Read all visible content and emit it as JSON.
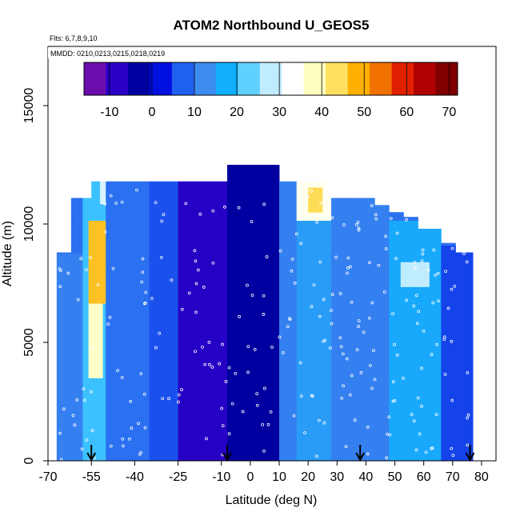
{
  "chart_data": {
    "type": "heatmap",
    "title": "ATOM2 Northbound U_GEOS5",
    "subtitle_flights": "Flts: 6,7,8,9,10",
    "subtitle_dates": "MMDD: 0210,0213,0215,0218,0219",
    "xlabel": "Latitude (deg N)",
    "ylabel": "Altitude (m)",
    "xlim": [
      -70,
      85
    ],
    "ylim": [
      0,
      17500
    ],
    "x_ticks": [
      -70,
      -55,
      -40,
      -25,
      -10,
      0,
      10,
      20,
      30,
      40,
      50,
      60,
      70,
      80
    ],
    "y_ticks": [
      0,
      5000,
      10000,
      15000
    ],
    "colorbar": {
      "range": [
        -16,
        72
      ],
      "ticks": [
        -10,
        0,
        10,
        20,
        30,
        40,
        50,
        60,
        70
      ],
      "colors": [
        "#6a0dad",
        "#2a00c8",
        "#0000a0",
        "#0010e0",
        "#2060f0",
        "#3c8cf0",
        "#10b0ff",
        "#60d0ff",
        "#c0ecff",
        "#ffffff",
        "#ffffc0",
        "#ffe060",
        "#ffb000",
        "#f07000",
        "#e02000",
        "#b00000",
        "#800000"
      ]
    },
    "column_max_altitude": [
      {
        "lat": [
          -67,
          -62
        ],
        "top": 8800
      },
      {
        "lat": [
          -62,
          -55
        ],
        "top": 11100
      },
      {
        "lat": [
          -55,
          -45
        ],
        "top": 11800
      },
      {
        "lat": [
          -45,
          -33
        ],
        "top": 11800
      },
      {
        "lat": [
          -33,
          -20
        ],
        "top": 11800
      },
      {
        "lat": [
          -20,
          -8
        ],
        "top": 11800
      },
      {
        "lat": [
          -8,
          2
        ],
        "top": 12500
      },
      {
        "lat": [
          2,
          10
        ],
        "top": 12500
      },
      {
        "lat": [
          10,
          20
        ],
        "top": 11800
      },
      {
        "lat": [
          20,
          26
        ],
        "top": 11800
      },
      {
        "lat": [
          26,
          33
        ],
        "top": 11100
      },
      {
        "lat": [
          33,
          43
        ],
        "top": 11100
      },
      {
        "lat": [
          43,
          48
        ],
        "top": 10800
      },
      {
        "lat": [
          48,
          53
        ],
        "top": 10500
      },
      {
        "lat": [
          53,
          58
        ],
        "top": 10300
      },
      {
        "lat": [
          58,
          66
        ],
        "top": 9800
      },
      {
        "lat": [
          66,
          71
        ],
        "top": 9200
      },
      {
        "lat": [
          71,
          77
        ],
        "top": 8800
      }
    ],
    "wind_regions": [
      {
        "lat": [
          -67,
          -58
        ],
        "alt": [
          0,
          8800
        ],
        "u": 10
      },
      {
        "lat": [
          -58,
          -50
        ],
        "alt": [
          0,
          11800
        ],
        "u": 20
      },
      {
        "lat": [
          -56,
          -50
        ],
        "alt": [
          6500,
          10000
        ],
        "u": 48
      },
      {
        "lat": [
          -56,
          -51
        ],
        "alt": [
          3500,
          6500
        ],
        "u": 38
      },
      {
        "lat": [
          -52,
          -43
        ],
        "alt": [
          11000,
          11800
        ],
        "u": 30
      },
      {
        "lat": [
          -50,
          -35
        ],
        "alt": [
          0,
          11800
        ],
        "u": 8
      },
      {
        "lat": [
          -35,
          -25
        ],
        "alt": [
          0,
          11800
        ],
        "u": 5
      },
      {
        "lat": [
          -25,
          -8
        ],
        "alt": [
          0,
          11800
        ],
        "u": -10
      },
      {
        "lat": [
          -8,
          10
        ],
        "alt": [
          0,
          12500
        ],
        "u": -5
      },
      {
        "lat": [
          10,
          16
        ],
        "alt": [
          0,
          11800
        ],
        "u": 10
      },
      {
        "lat": [
          16,
          28
        ],
        "alt": [
          0,
          11800
        ],
        "u": 14
      },
      {
        "lat": [
          16,
          28
        ],
        "alt": [
          10000,
          11800
        ],
        "u": 35
      },
      {
        "lat": [
          20,
          25
        ],
        "alt": [
          10500,
          11500
        ],
        "u": 45
      },
      {
        "lat": [
          28,
          48
        ],
        "alt": [
          0,
          11100
        ],
        "u": 10
      },
      {
        "lat": [
          48,
          66
        ],
        "alt": [
          0,
          10300
        ],
        "u": 16
      },
      {
        "lat": [
          52,
          62
        ],
        "alt": [
          7500,
          8500
        ],
        "u": 28
      },
      {
        "lat": [
          66,
          77
        ],
        "alt": [
          0,
          9200
        ],
        "u": 4
      }
    ],
    "flight_markers_lat": [
      -55,
      -8,
      38,
      76
    ]
  }
}
